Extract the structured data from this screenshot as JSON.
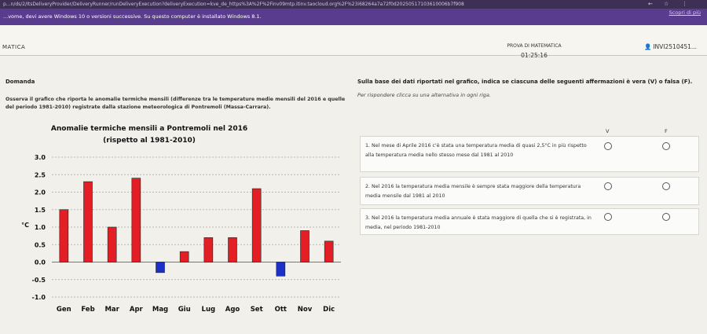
{
  "browser": {
    "url": "p...n/ds/2/ItsDeliveryProvider/DeliveryRunner/runDeliveryExecution?deliveryExecution=kve_de_https%3A%2F%2Finv09mtp.itinv.taocloud.org%2F%23i68264a7a72f0d20250517103610006b7f908"
  },
  "banner": {
    "message": "...vome, devi avere Windows 10 o versioni successive. Su questo computer è installato Windows 8.1.",
    "link": "Scopri di più"
  },
  "header": {
    "subject": "MATICA",
    "test_title": "PROVA DI MATEMATICA",
    "timer": "01:25:16",
    "user_id": "INVI2510451..."
  },
  "question": {
    "label": "Domanda",
    "text": "Osserva il grafico che riporta le anomalie termiche mensili (differenze tra le temperature medie mensili del 2016 e quelle del periodo 1981-2010) registrate dalla stazione meteorologica di Pontremoli (Massa-Carrara).",
    "right_title": "Sulla base dei dati riportati nel grafico, indica se ciascuna delle seguenti affermazioni è vera (V) o falsa (F).",
    "instructions": "Per rispondere clicca su una alternativa in ogni riga.",
    "col_true": "V",
    "col_false": "F",
    "statements": [
      "1. Nel mese di Aprile 2016 c'è stata una temperatura media di quasi 2,5°C in più rispetto alla temperatura media nello stesso mese dal 1981 al 2010",
      "2. Nel 2016 la temperatura media mensile è sempre stata maggiore della temperatura media mensile dal 1981 al 2010",
      "3. Nel 2016 la temperatura media annuale è stata maggiore di quella che si è registrata, in media, nel periodo 1981-2010"
    ]
  },
  "chart_data": {
    "type": "bar",
    "title": "Anomalie termiche mensili a Pontremoli nel 2016",
    "subtitle": "(rispetto al 1981-2010)",
    "ylabel": "°C",
    "xlabel": "",
    "ylim": [
      -1.0,
      3.0
    ],
    "yticks": [
      "3.0",
      "2.5",
      "2.0",
      "1.5",
      "1.0",
      "0.5",
      "0.0",
      "-0.5",
      "-1.0"
    ],
    "categories": [
      "Gen",
      "Feb",
      "Mar",
      "Apr",
      "Mag",
      "Giu",
      "Lug",
      "Ago",
      "Set",
      "Ott",
      "Nov",
      "Dic"
    ],
    "values": [
      1.5,
      2.3,
      1.0,
      2.4,
      -0.3,
      0.3,
      0.7,
      0.7,
      2.1,
      -0.4,
      0.9,
      0.6
    ],
    "colors": {
      "positive": "#e31e24",
      "negative": "#1b30c7"
    },
    "grid": true
  }
}
